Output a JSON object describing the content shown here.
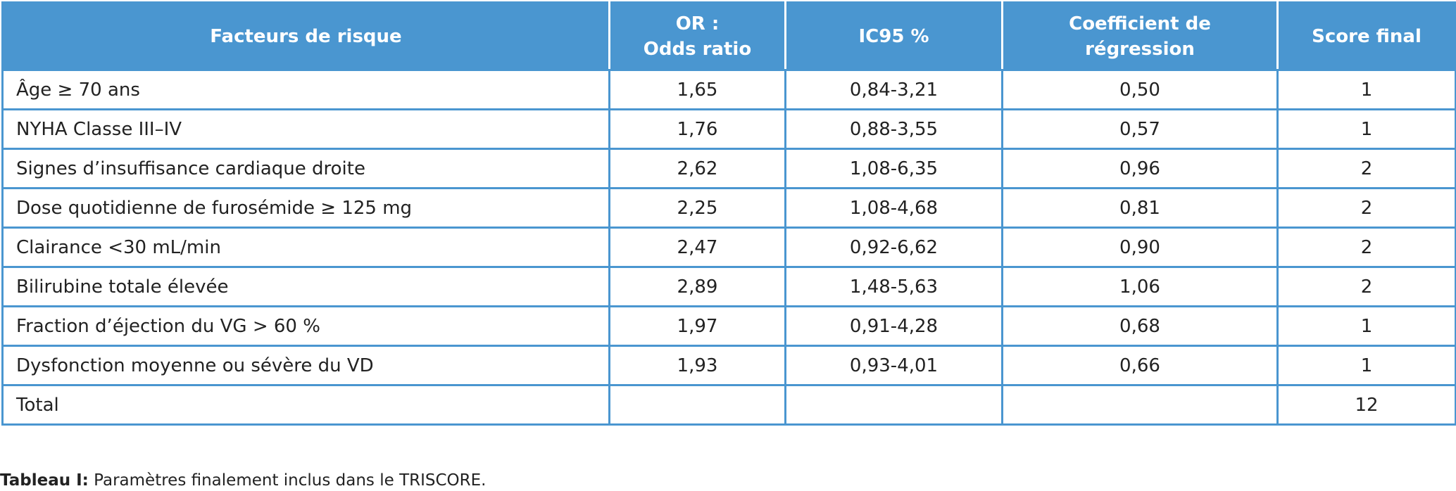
{
  "table": {
    "header": [
      [
        "Facteurs de risque"
      ],
      [
        "OR :",
        "Odds ratio"
      ],
      [
        "IC95 %"
      ],
      [
        "Coefficient de",
        "régression"
      ],
      [
        "Score final"
      ]
    ],
    "rows": [
      [
        "Âge ≥ 70 ans",
        "1,65",
        "0,84-3,21",
        "0,50",
        "1"
      ],
      [
        "NYHA Classe III–IV",
        "1,76",
        "0,88-3,55",
        "0,57",
        "1"
      ],
      [
        "Signes d’insuffisance cardiaque droite",
        "2,62",
        "1,08-6,35",
        "0,96",
        "2"
      ],
      [
        "Dose quotidienne de furosémide ≥ 125 mg",
        "2,25",
        "1,08-4,68",
        "0,81",
        "2"
      ],
      [
        "Clairance <30 mL/min",
        "2,47",
        "0,92-6,62",
        "0,90",
        "2"
      ],
      [
        "Bilirubine totale élevée",
        "2,89",
        "1,48-5,63",
        "1,06",
        "2"
      ],
      [
        "Fraction d’éjection du VG > 60 %",
        "1,97",
        "0,91-4,28",
        "0,68",
        "1"
      ],
      [
        "Dysfonction moyenne ou sévère du VD",
        "1,93",
        "0,93-4,01",
        "0,66",
        "1"
      ],
      [
        "Total",
        null,
        null,
        null,
        "12"
      ]
    ]
  },
  "caption": {
    "label": "Tableau I:",
    "text": "Paramètres finalement inclus dans le TRISCORE."
  }
}
